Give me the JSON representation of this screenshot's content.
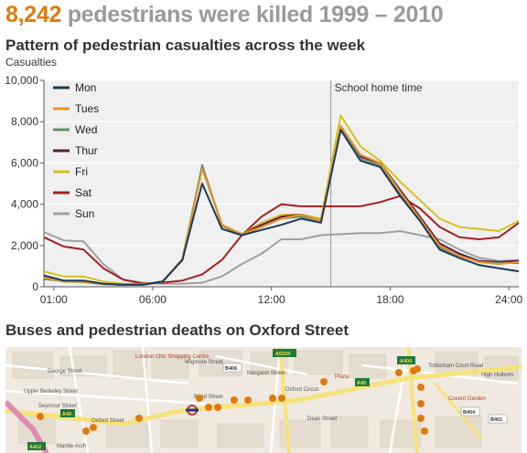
{
  "headline": {
    "number": "8,242",
    "rest": " pedestrians were killed 1999 – 2010"
  },
  "chart_data": {
    "type": "line",
    "title": "Pattern of pedestrian casualties across the week",
    "ylabel": "Casualties",
    "xlabel": "",
    "xlim": [
      0.5,
      24.5
    ],
    "ylim": [
      0,
      10000
    ],
    "yticks": [
      0,
      2000,
      4000,
      6000,
      8000,
      10000
    ],
    "ytick_labels": [
      "0",
      "2,000",
      "4,000",
      "6,000",
      "8,000",
      "10,000"
    ],
    "xticks": [
      1,
      6,
      12,
      18,
      24
    ],
    "xtick_labels": [
      "01:00",
      "06:00",
      "12:00",
      "18:00",
      "24:00"
    ],
    "annotation": {
      "label": "School home time",
      "x": 15
    },
    "legend_position": "top-left",
    "x": [
      0.5,
      1.5,
      2.5,
      3.5,
      4.5,
      5.5,
      6.5,
      7.5,
      8.5,
      9.5,
      10.5,
      11.5,
      12.5,
      13.5,
      14.5,
      15.5,
      16.5,
      17.5,
      18.5,
      19.5,
      20.5,
      21.5,
      22.5,
      23.5,
      24.5
    ],
    "series": [
      {
        "name": "Mon",
        "color": "#1d3a5a",
        "values": [
          550,
          300,
          300,
          150,
          100,
          100,
          250,
          1300,
          5000,
          2800,
          2500,
          2750,
          3000,
          3300,
          3100,
          7600,
          6100,
          5800,
          4400,
          3200,
          1800,
          1400,
          1050,
          900,
          750
        ]
      },
      {
        "name": "Tues",
        "color": "#e8952a",
        "values": [
          450,
          250,
          230,
          150,
          100,
          100,
          250,
          1350,
          5700,
          3000,
          2550,
          2900,
          3300,
          3500,
          3200,
          7800,
          6400,
          6000,
          4600,
          3300,
          2000,
          1500,
          1200,
          1100,
          1200
        ]
      },
      {
        "name": "Wed",
        "color": "#6b8f6b",
        "values": [
          400,
          250,
          220,
          130,
          90,
          90,
          240,
          1350,
          5900,
          2950,
          2500,
          2900,
          3300,
          3400,
          3200,
          7700,
          6200,
          5900,
          4500,
          3200,
          1900,
          1500,
          1200,
          1150,
          1150
        ]
      },
      {
        "name": "Thur",
        "color": "#5a1a4a",
        "values": [
          380,
          280,
          250,
          130,
          90,
          100,
          260,
          1300,
          5800,
          3000,
          2550,
          3000,
          3400,
          3500,
          3200,
          7700,
          6300,
          6000,
          4700,
          3400,
          2100,
          1600,
          1250,
          1200,
          1250
        ]
      },
      {
        "name": "Fri",
        "color": "#d8c020",
        "values": [
          750,
          500,
          500,
          250,
          150,
          120,
          250,
          1350,
          5800,
          3000,
          2550,
          3100,
          3500,
          3500,
          3300,
          8300,
          6800,
          6100,
          5100,
          4200,
          3300,
          2900,
          2800,
          2700,
          3200
        ]
      },
      {
        "name": "Sat",
        "color": "#a52020",
        "values": [
          2400,
          1950,
          1800,
          900,
          350,
          150,
          200,
          300,
          600,
          1300,
          2500,
          3400,
          4000,
          3900,
          3900,
          3900,
          3900,
          4100,
          4400,
          3800,
          2900,
          2400,
          2300,
          2400,
          3100
        ]
      },
      {
        "name": "Sun",
        "color": "#a0a0a0",
        "values": [
          2650,
          2250,
          2200,
          1100,
          350,
          200,
          150,
          150,
          200,
          500,
          1100,
          1600,
          2300,
          2300,
          2500,
          2550,
          2600,
          2600,
          2700,
          2500,
          2300,
          1800,
          1400,
          1250,
          1300
        ]
      }
    ]
  },
  "map": {
    "title": "Buses and pedestrian deaths on Oxford Street",
    "roads": [
      "A5204",
      "A400",
      "A40",
      "B406",
      "A40",
      "A40",
      "A402",
      "B404",
      "B401"
    ],
    "labels": [
      "London Chic Shopping Centre",
      "George Street",
      "Wigmore Street",
      "Margaret Street",
      "Tottenham Court Road",
      "Upper Berkeley Street",
      "Seymour Street",
      "Oxford Street",
      "Bond Street",
      "Oxford Circus",
      "Plaza",
      "Covent Garden",
      "Marble Arch",
      "Dean Street",
      "High Holborn"
    ],
    "marker_color": "#e07a10"
  }
}
